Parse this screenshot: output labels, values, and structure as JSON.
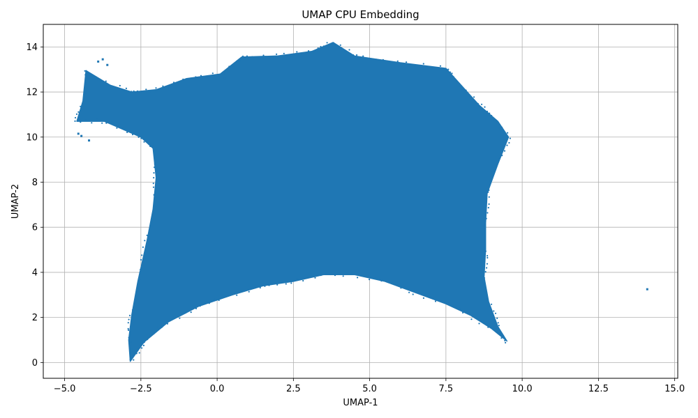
{
  "chart_data": {
    "type": "scatter",
    "title": "UMAP CPU Embedding",
    "xlabel": "UMAP-1",
    "ylabel": "UMAP-2",
    "xlim": [
      -5.7,
      15.1
    ],
    "ylim": [
      -0.7,
      15.0
    ],
    "grid": true,
    "legend": "none",
    "x_ticks": [
      -5.0,
      -2.5,
      0.0,
      2.5,
      5.0,
      7.5,
      10.0,
      12.5,
      15.0
    ],
    "x_tick_labels": [
      "−5.0",
      "−2.5",
      "0.0",
      "2.5",
      "5.0",
      "7.5",
      "10.0",
      "12.5",
      "15.0"
    ],
    "y_ticks": [
      0,
      2,
      4,
      6,
      8,
      10,
      12,
      14
    ],
    "y_tick_labels": [
      "0",
      "2",
      "4",
      "6",
      "8",
      "10",
      "12",
      "14"
    ],
    "series": [
      {
        "color": "#1f77b4",
        "cluster_outline": [
          [
            -2.85,
            0.05
          ],
          [
            -2.4,
            0.9
          ],
          [
            -1.6,
            1.8
          ],
          [
            -0.6,
            2.5
          ],
          [
            0.5,
            3.0
          ],
          [
            1.5,
            3.4
          ],
          [
            2.5,
            3.6
          ],
          [
            3.5,
            3.9
          ],
          [
            4.5,
            3.9
          ],
          [
            5.5,
            3.6
          ],
          [
            6.5,
            3.1
          ],
          [
            7.5,
            2.6
          ],
          [
            8.3,
            2.1
          ],
          [
            9.0,
            1.5
          ],
          [
            9.5,
            0.95
          ],
          [
            9.2,
            1.6
          ],
          [
            8.9,
            2.7
          ],
          [
            8.75,
            3.8
          ],
          [
            8.8,
            5.0
          ],
          [
            8.8,
            6.2
          ],
          [
            8.85,
            7.5
          ],
          [
            9.2,
            8.8
          ],
          [
            9.55,
            10.0
          ],
          [
            9.2,
            10.7
          ],
          [
            8.6,
            11.4
          ],
          [
            8.0,
            12.3
          ],
          [
            7.5,
            13.05
          ],
          [
            6.0,
            13.3
          ],
          [
            4.5,
            13.6
          ],
          [
            3.8,
            14.2
          ],
          [
            3.1,
            13.8
          ],
          [
            2.0,
            13.6
          ],
          [
            0.8,
            13.55
          ],
          [
            0.1,
            12.8
          ],
          [
            -1.0,
            12.6
          ],
          [
            -2.0,
            12.1
          ],
          [
            -2.8,
            12.0
          ],
          [
            -3.5,
            12.3
          ],
          [
            -4.3,
            12.95
          ],
          [
            -4.4,
            11.6
          ],
          [
            -4.6,
            10.7
          ],
          [
            -3.7,
            10.7
          ],
          [
            -2.5,
            10.0
          ],
          [
            -2.1,
            9.5
          ],
          [
            -2.0,
            8.2
          ],
          [
            -2.1,
            6.8
          ],
          [
            -2.3,
            5.4
          ],
          [
            -2.6,
            3.6
          ],
          [
            -2.8,
            2.1
          ],
          [
            -2.9,
            1.0
          ]
        ],
        "isolated_points": [
          [
            14.1,
            3.25
          ],
          [
            -4.45,
            10.05
          ],
          [
            -4.2,
            9.85
          ],
          [
            -3.9,
            13.35
          ],
          [
            -3.6,
            13.2
          ],
          [
            -4.55,
            10.15
          ],
          [
            -3.75,
            13.45
          ],
          [
            0.25,
            12.6
          ],
          [
            0.2,
            12.8
          ]
        ]
      }
    ]
  }
}
